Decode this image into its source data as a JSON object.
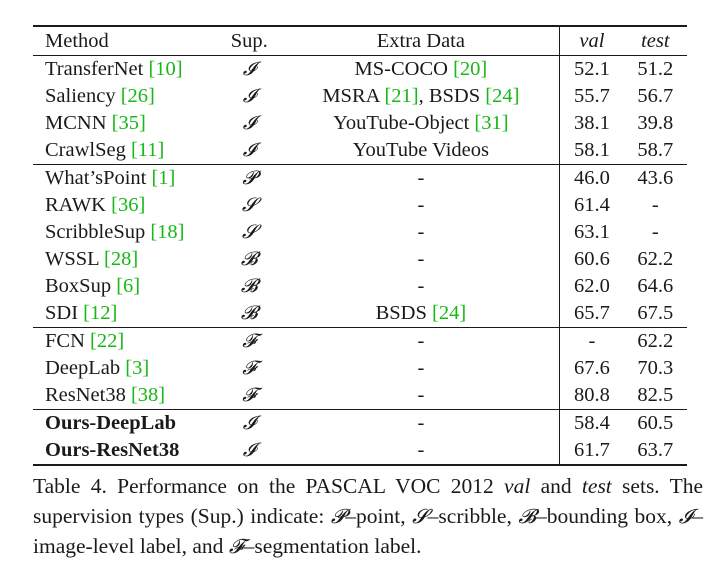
{
  "table": {
    "headers": {
      "method": "Method",
      "sup": "Sup.",
      "extra": "Extra Data",
      "val": "val",
      "test": "test"
    },
    "rows": [
      {
        "group_start": false,
        "bold": false,
        "name": "TransferNet",
        "ref": "[10]",
        "sup": "𝓘",
        "extra": "MS-COCO",
        "extra_ref": "[20]",
        "extra2": "",
        "extra2_ref": "",
        "val": "52.1",
        "test": "51.2"
      },
      {
        "group_start": false,
        "bold": false,
        "name": "Saliency",
        "ref": "[26]",
        "sup": "𝓘",
        "extra": "MSRA",
        "extra_ref": "[21]",
        "extra2": ", BSDS",
        "extra2_ref": "[24]",
        "val": "55.7",
        "test": "56.7"
      },
      {
        "group_start": false,
        "bold": false,
        "name": "MCNN",
        "ref": "[35]",
        "sup": "𝓘",
        "extra": "YouTube-Object",
        "extra_ref": "[31]",
        "extra2": "",
        "extra2_ref": "",
        "val": "38.1",
        "test": "39.8"
      },
      {
        "group_start": false,
        "bold": false,
        "name": "CrawlSeg",
        "ref": "[11]",
        "sup": "𝓘",
        "extra": "YouTube Videos",
        "extra_ref": "",
        "extra2": "",
        "extra2_ref": "",
        "val": "58.1",
        "test": "58.7"
      },
      {
        "group_start": true,
        "bold": false,
        "name": "What’sPoint",
        "ref": "[1]",
        "sup": "𝓟",
        "extra": "-",
        "extra_ref": "",
        "extra2": "",
        "extra2_ref": "",
        "val": "46.0",
        "test": "43.6"
      },
      {
        "group_start": false,
        "bold": false,
        "name": "RAWK",
        "ref": "[36]",
        "sup": "𝓢",
        "extra": "-",
        "extra_ref": "",
        "extra2": "",
        "extra2_ref": "",
        "val": "61.4",
        "test": "-"
      },
      {
        "group_start": false,
        "bold": false,
        "name": "ScribbleSup",
        "ref": "[18]",
        "sup": "𝓢",
        "extra": "-",
        "extra_ref": "",
        "extra2": "",
        "extra2_ref": "",
        "val": "63.1",
        "test": "-"
      },
      {
        "group_start": false,
        "bold": false,
        "name": "WSSL",
        "ref": "[28]",
        "sup": "𝓑",
        "extra": "-",
        "extra_ref": "",
        "extra2": "",
        "extra2_ref": "",
        "val": "60.6",
        "test": "62.2"
      },
      {
        "group_start": false,
        "bold": false,
        "name": "BoxSup",
        "ref": "[6]",
        "sup": "𝓑",
        "extra": "-",
        "extra_ref": "",
        "extra2": "",
        "extra2_ref": "",
        "val": "62.0",
        "test": "64.6"
      },
      {
        "group_start": false,
        "bold": false,
        "name": "SDI",
        "ref": "[12]",
        "sup": "𝓑",
        "extra": "BSDS",
        "extra_ref": "[24]",
        "extra2": "",
        "extra2_ref": "",
        "val": "65.7",
        "test": "67.5"
      },
      {
        "group_start": true,
        "bold": false,
        "name": "FCN",
        "ref": "[22]",
        "sup": "𝓕",
        "extra": "-",
        "extra_ref": "",
        "extra2": "",
        "extra2_ref": "",
        "val": "-",
        "test": "62.2"
      },
      {
        "group_start": false,
        "bold": false,
        "name": "DeepLab",
        "ref": "[3]",
        "sup": "𝓕",
        "extra": "-",
        "extra_ref": "",
        "extra2": "",
        "extra2_ref": "",
        "val": "67.6",
        "test": "70.3"
      },
      {
        "group_start": false,
        "bold": false,
        "name": "ResNet38",
        "ref": "[38]",
        "sup": "𝓕",
        "extra": "-",
        "extra_ref": "",
        "extra2": "",
        "extra2_ref": "",
        "val": "80.8",
        "test": "82.5"
      },
      {
        "group_start": true,
        "bold": true,
        "name": "Ours-DeepLab",
        "ref": "",
        "sup": "𝓘",
        "extra": "-",
        "extra_ref": "",
        "extra2": "",
        "extra2_ref": "",
        "val": "58.4",
        "test": "60.5"
      },
      {
        "group_start": false,
        "bold": true,
        "name": "Ours-ResNet38",
        "ref": "",
        "sup": "𝓘",
        "extra": "-",
        "extra_ref": "",
        "extra2": "",
        "extra2_ref": "",
        "val": "61.7",
        "test": "63.7"
      }
    ]
  },
  "caption": {
    "part1": "Table 4. Performance on the PASCAL VOC 2012 ",
    "val_word": "val",
    "and_word": " and ",
    "test_word": "test",
    "part2": " sets. The supervision types (Sup.) indicate: ",
    "sym_p": "𝓟",
    "def_p": "–point, ",
    "sym_s": "𝓢",
    "def_s": "–scribble, ",
    "sym_b": "𝓑",
    "def_b": "–bounding box, ",
    "sym_i": "𝓘",
    "def_i": "–image-level label, and ",
    "sym_f": "𝓕",
    "def_f": "–segmentation label."
  },
  "colors": {
    "citation": "#18b818",
    "text": "#1a1a1a"
  }
}
